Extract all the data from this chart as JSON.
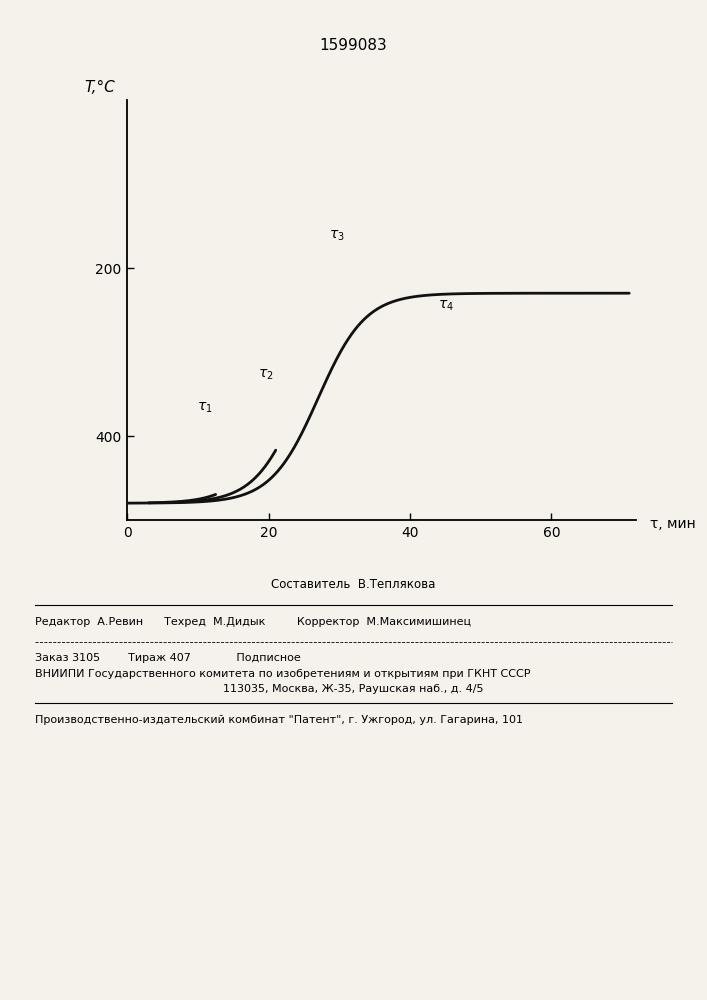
{
  "title": "1599083",
  "title_fontsize": 11,
  "xlabel": "τ, мин",
  "ylabel": "T,°C",
  "xlim": [
    0,
    72
  ],
  "ylim_bottom": 500,
  "ylim_top": 0,
  "yticks": [
    200,
    400
  ],
  "xticks": [
    0,
    20,
    40,
    60
  ],
  "background_color": "#f5f2ec",
  "line_color": "#111111",
  "line_width": 2.0,
  "footer_line1": "Составитель  В.Теплякова",
  "footer_line2": "Редактор  А.Ревин      Техред  М.Дидык         Корректор  М.Максимишинец",
  "footer_line3": "Заказ 3105        Тираж 407             Подписное",
  "footer_line4": "ВНИИПИ Государственного комитета по изобретениям и открытиям при ГКНТ СССР",
  "footer_line5": "113035, Москва, Ж-35, Раушская наб., д. 4/5",
  "footer_line6": "Производственно-издательский комбинат \"Патент\", г. Ужгород, ул. Гагарина, 101"
}
